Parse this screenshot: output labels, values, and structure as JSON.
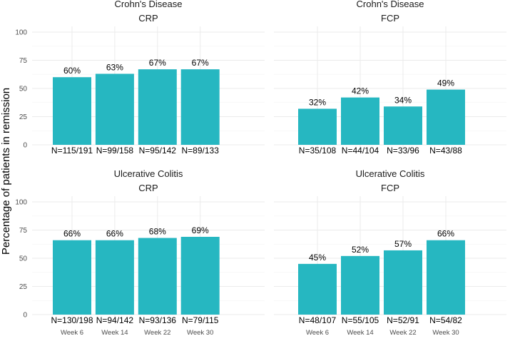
{
  "chart_data": {
    "type": "bar",
    "ylabel": "Percentage of patients in remission",
    "ylim": [
      0,
      100
    ],
    "yticks": [
      0,
      25,
      50,
      75,
      100
    ],
    "categories": [
      "Week 6",
      "Week 14",
      "Week 22",
      "Week 30"
    ],
    "bar_color": "#26b7c1",
    "panels": [
      {
        "disease": "Crohn's Disease",
        "marker": "CRP",
        "values": [
          60,
          63,
          67,
          67
        ],
        "value_labels": [
          "60%",
          "63%",
          "67%",
          "67%"
        ],
        "n_labels": [
          "N=115/191",
          "N=99/158",
          "N=95/142",
          "N=89/133"
        ]
      },
      {
        "disease": "Crohn's Disease",
        "marker": "FCP",
        "values": [
          32,
          42,
          34,
          49
        ],
        "value_labels": [
          "32%",
          "42%",
          "34%",
          "49%"
        ],
        "n_labels": [
          "N=35/108",
          "N=44/104",
          "N=33/96",
          "N=43/88"
        ]
      },
      {
        "disease": "Ulcerative Colitis",
        "marker": "CRP",
        "values": [
          66,
          66,
          68,
          69
        ],
        "value_labels": [
          "66%",
          "66%",
          "68%",
          "69%"
        ],
        "n_labels": [
          "N=130/198",
          "N=94/142",
          "N=93/136",
          "N=79/115"
        ]
      },
      {
        "disease": "Ulcerative Colitis",
        "marker": "FCP",
        "values": [
          45,
          52,
          57,
          66
        ],
        "value_labels": [
          "45%",
          "52%",
          "57%",
          "66%"
        ],
        "n_labels": [
          "N=48/107",
          "N=55/105",
          "N=52/91",
          "N=54/82"
        ]
      }
    ]
  }
}
